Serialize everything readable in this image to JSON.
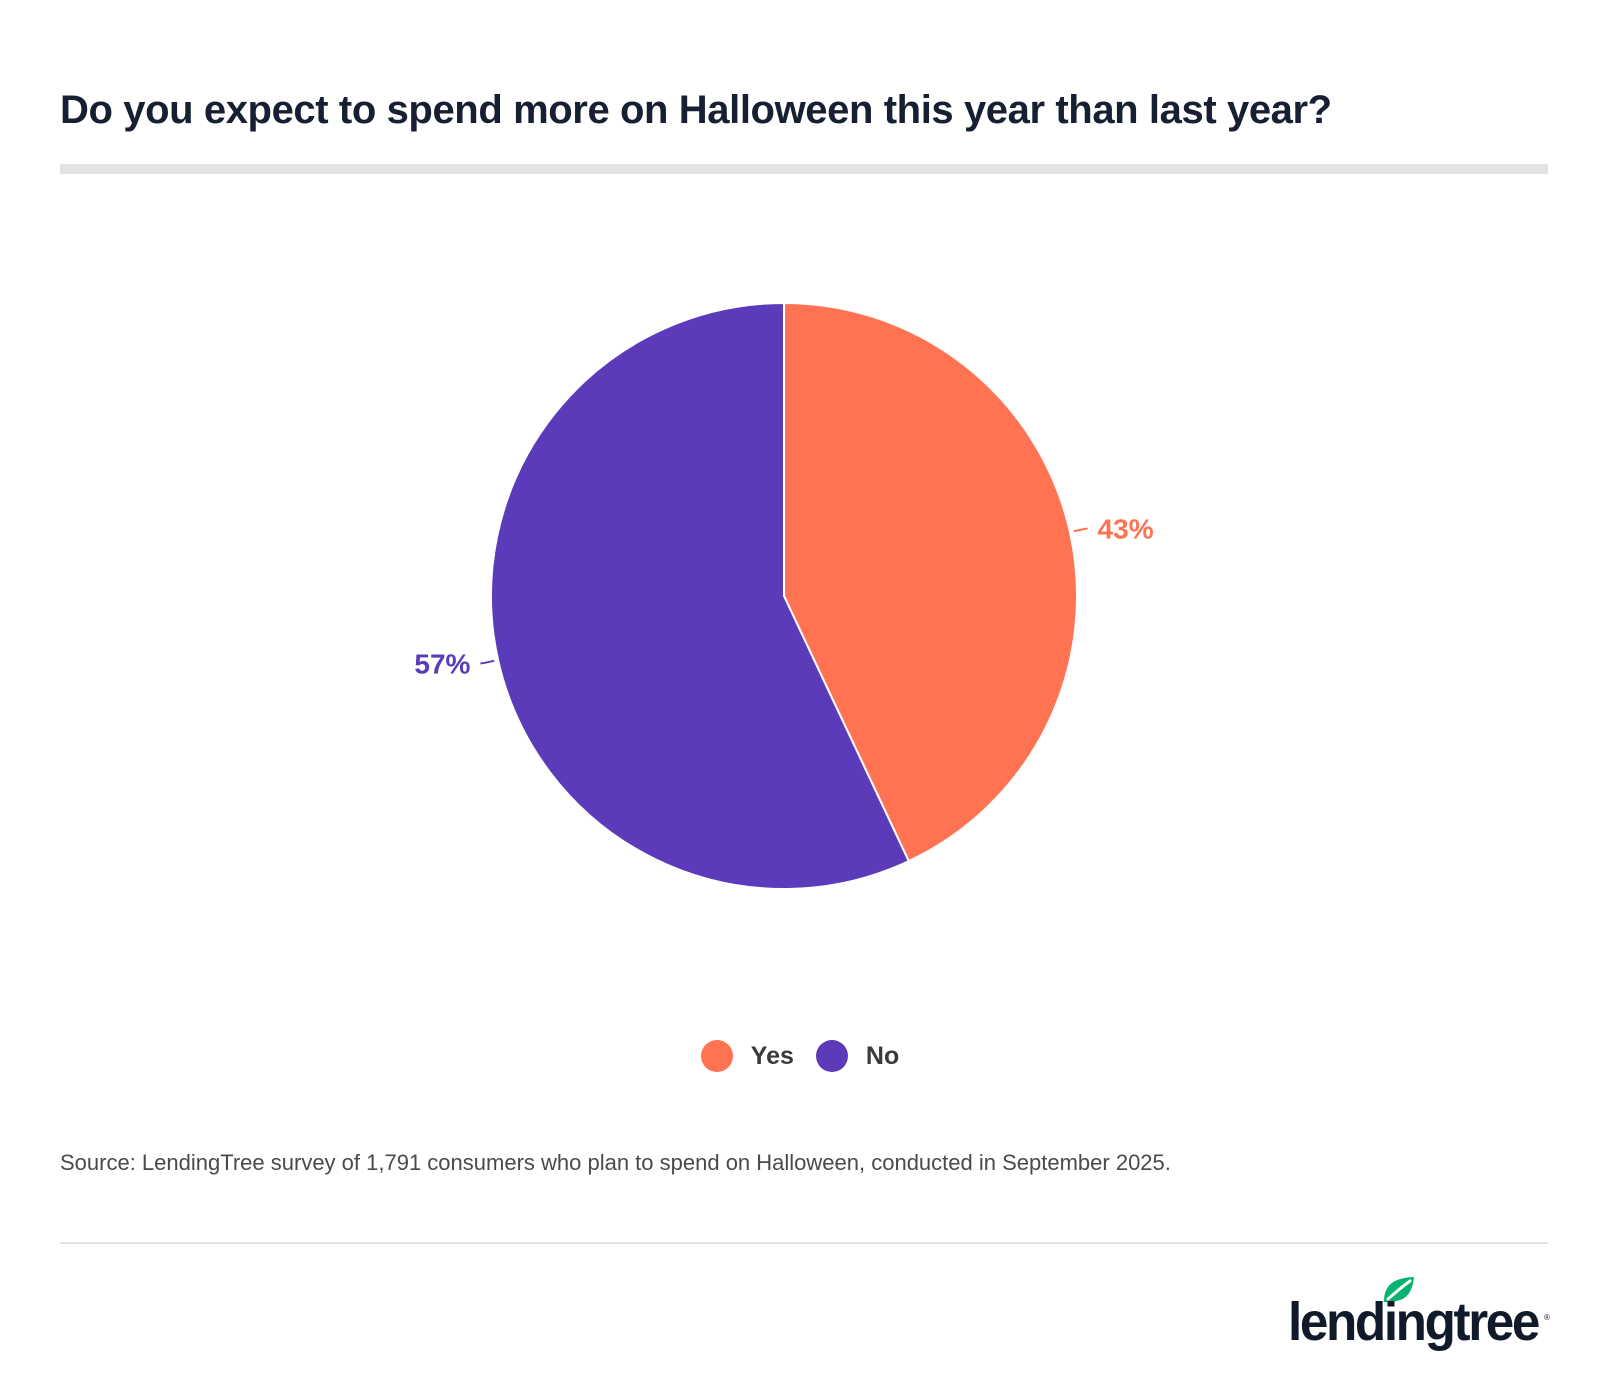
{
  "title": "Do you expect to spend more on Halloween this year than last year?",
  "chart_data": {
    "type": "pie",
    "title": "Do you expect to spend more on Halloween this year than last year?",
    "categories": [
      "Yes",
      "No"
    ],
    "values": [
      43,
      57
    ],
    "labels": [
      "43%",
      "57%"
    ],
    "colors": [
      "#ff7252",
      "#5b3bb9"
    ],
    "legend_position": "bottom-center"
  },
  "legend": {
    "items": [
      {
        "label": "Yes",
        "color": "#ff7252"
      },
      {
        "label": "No",
        "color": "#5b3bb9"
      }
    ]
  },
  "source": "Source: LendingTree survey of 1,791 consumers who plan to spend on Halloween, conducted in September 2025.",
  "logo": {
    "text": "lendingtree",
    "icon": "leaf-icon",
    "leaf_color": "#07b36f",
    "text_color": "#111a2b"
  }
}
